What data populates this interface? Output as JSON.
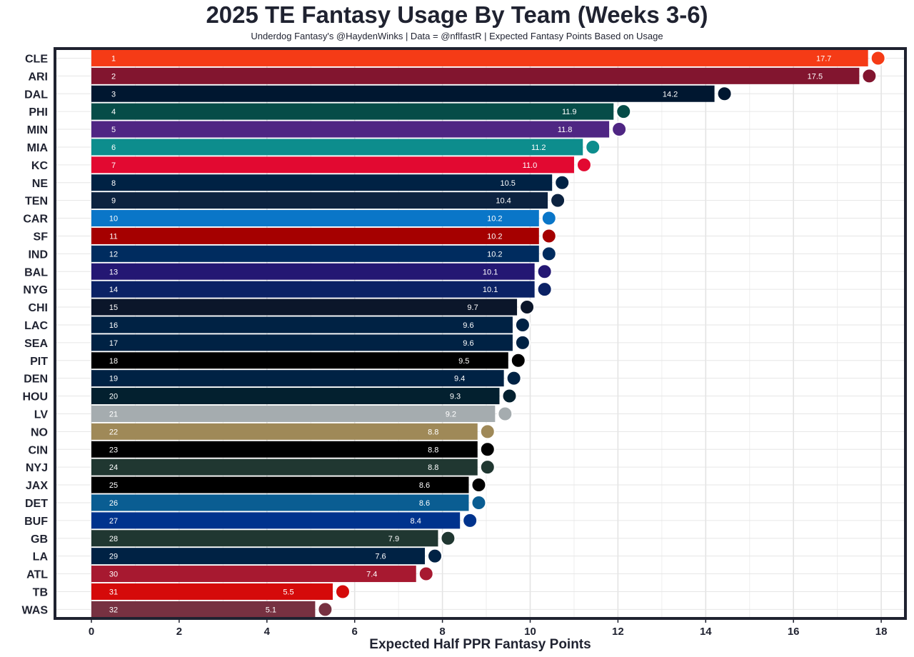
{
  "chart_data": {
    "type": "bar",
    "orientation": "horizontal",
    "title": "2025 TE Fantasy Usage By Team (Weeks 3-6)",
    "subtitle": "Underdog Fantasy's @HaydenWinks | Data = @nflfastR | Expected Fantasy Points Based on Usage",
    "xlabel": "Expected Half PPR Fantasy Points",
    "ylabel": "",
    "xlim": [
      -0.85,
      18.6
    ],
    "xticks": [
      0,
      2,
      4,
      6,
      8,
      10,
      12,
      14,
      16,
      18
    ],
    "grid": true,
    "categories": [
      "CLE",
      "ARI",
      "DAL",
      "PHI",
      "MIN",
      "MIA",
      "KC",
      "NE",
      "TEN",
      "CAR",
      "SF",
      "IND",
      "BAL",
      "NYG",
      "CHI",
      "LAC",
      "SEA",
      "PIT",
      "DEN",
      "HOU",
      "LV",
      "NO",
      "CIN",
      "NYJ",
      "JAX",
      "DET",
      "BUF",
      "GB",
      "LA",
      "ATL",
      "TB",
      "WAS"
    ],
    "ranks": [
      "1",
      "2",
      "3",
      "4",
      "5",
      "6",
      "7",
      "8",
      "9",
      "10",
      "11",
      "12",
      "13",
      "14",
      "15",
      "16",
      "17",
      "18",
      "19",
      "20",
      "21",
      "22",
      "23",
      "24",
      "25",
      "26",
      "27",
      "28",
      "29",
      "30",
      "31",
      "32"
    ],
    "values": [
      17.7,
      17.5,
      14.2,
      11.9,
      11.8,
      11.2,
      11.0,
      10.5,
      10.4,
      10.2,
      10.2,
      10.2,
      10.1,
      10.1,
      9.7,
      9.6,
      9.6,
      9.5,
      9.4,
      9.3,
      9.2,
      8.8,
      8.8,
      8.8,
      8.6,
      8.6,
      8.4,
      7.9,
      7.6,
      7.4,
      5.5,
      5.1
    ],
    "value_labels": [
      "17.7",
      "17.5",
      "14.2",
      "11.9",
      "11.8",
      "11.2",
      "11.0",
      "10.5",
      "10.4",
      "10.2",
      "10.2",
      "10.2",
      "10.1",
      "10.1",
      "9.7",
      "9.6",
      "9.6",
      "9.5",
      "9.4",
      "9.3",
      "9.2",
      "8.8",
      "8.8",
      "8.8",
      "8.6",
      "8.6",
      "8.4",
      "7.9",
      "7.6",
      "7.4",
      "5.5",
      "5.1"
    ],
    "colors": [
      "#F53B16",
      "#82152F",
      "#001730",
      "#064C48",
      "#4F2683",
      "#0D8D8D",
      "#E20931",
      "#002244",
      "#0C2340",
      "#0A76C8",
      "#A50000",
      "#002C5F",
      "#241773",
      "#0B2265",
      "#0B162A",
      "#002244",
      "#002244",
      "#000000",
      "#002244",
      "#03202F",
      "#A5ACAF",
      "#9F8958",
      "#000000",
      "#203731",
      "#000000",
      "#0A5D92",
      "#00338D",
      "#203731",
      "#002244",
      "#A71930",
      "#D50A0A",
      "#773141"
    ]
  }
}
